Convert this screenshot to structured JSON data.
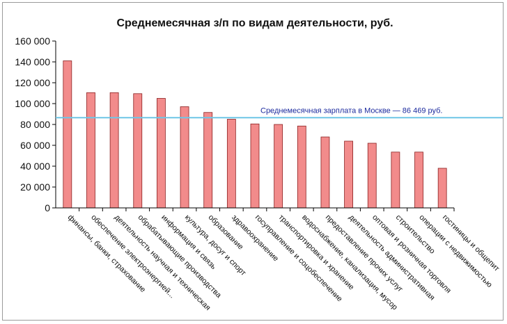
{
  "chart_data": {
    "type": "bar",
    "title": "Среднемесячная з/п по видам деятельности, руб.",
    "xlabel": "",
    "ylabel": "",
    "ylim": [
      0,
      160000
    ],
    "yticks": [
      0,
      20000,
      40000,
      60000,
      80000,
      100000,
      120000,
      140000,
      160000
    ],
    "ytick_labels": [
      "0",
      "20 000",
      "40 000",
      "60 000",
      "80 000",
      "100 000",
      "120 000",
      "140 000",
      "160 000"
    ],
    "grid": false,
    "legend": "none",
    "categories": [
      "финансы, банки, страхование",
      "обеспечение электроэнергией...",
      "деятельность научная и техническая",
      "обрабатывающие производства",
      "информация и связь",
      "культура, досуг и спорт",
      "образование",
      "здравоохранение",
      "госуправление и соцобеспечение",
      "транспортировка и хранение",
      "водоснабжение, канализация, мусор",
      "предоставление прочих услуг",
      "деятельность административная",
      "оптовая и розничная торговля",
      "строительство",
      "операции с недвижимостью",
      "гостиницы и общепит"
    ],
    "values": [
      141000,
      110500,
      110500,
      109500,
      105000,
      97000,
      91500,
      85000,
      80500,
      80000,
      78500,
      68000,
      64000,
      62000,
      53500,
      53500,
      38000
    ],
    "reference_line": {
      "value": 86469,
      "label": "Среднемесячная зарплата в Москве — 86 469  руб."
    },
    "colors": {
      "bar_fill": "#F28B8B",
      "bar_stroke": "#8A2020",
      "reference_line": "#6EC6E6",
      "reference_label": "#1B2A9E",
      "axis": "#000000"
    }
  }
}
